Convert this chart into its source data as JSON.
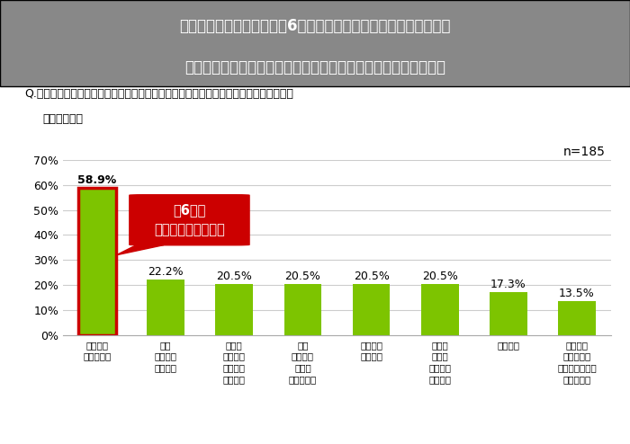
{
  "title_line1": "【おひとりさま予備軍】約6割が配偶者の死後の準備をしていない",
  "title_line2": "準備度合いが最も高いのは「お墓」、最も低いのは「死後事務」",
  "question": "Q.配偶者が先に亡くなってしまった後の手続きで準備していることを教えてください。",
  "question2": "（複数回答）",
  "n_label": "n=185",
  "categories_line1": [
    "特に準備",
    "お墓",
    "お葬式",
    "相続",
    "金融機関",
    "不動産",
    "遺品整理",
    "死後事務"
  ],
  "categories_line2": [
    "していない",
    "納骨先や",
    "参列者や",
    "相続税の",
    "への連絡",
    "売却や",
    "",
    "公共料金の"
  ],
  "categories_line3": [
    "",
    "種類など",
    "葬儀場の",
    "申告や",
    "",
    "世帯主の",
    "",
    "解約や役所への"
  ],
  "categories_line4": [
    "",
    "",
    "選択など",
    "支払いなど",
    "",
    "変更など",
    "",
    "届け出など"
  ],
  "values": [
    58.9,
    22.2,
    20.5,
    20.5,
    20.5,
    20.5,
    17.3,
    13.5
  ],
  "bar_color": "#7DC400",
  "bar_edge_color_first": "#CC0000",
  "title_bg_color": "#888888",
  "title_text_color": "#ffffff",
  "annotation_bg": "#CC0000",
  "annotation_text_color": "#ffffff",
  "ylim": [
    0,
    70
  ],
  "yticks": [
    0,
    10,
    20,
    30,
    40,
    50,
    60,
    70
  ],
  "grid_color": "#cccccc",
  "background_color": "#ffffff",
  "white_bg_color": "#ffffff"
}
